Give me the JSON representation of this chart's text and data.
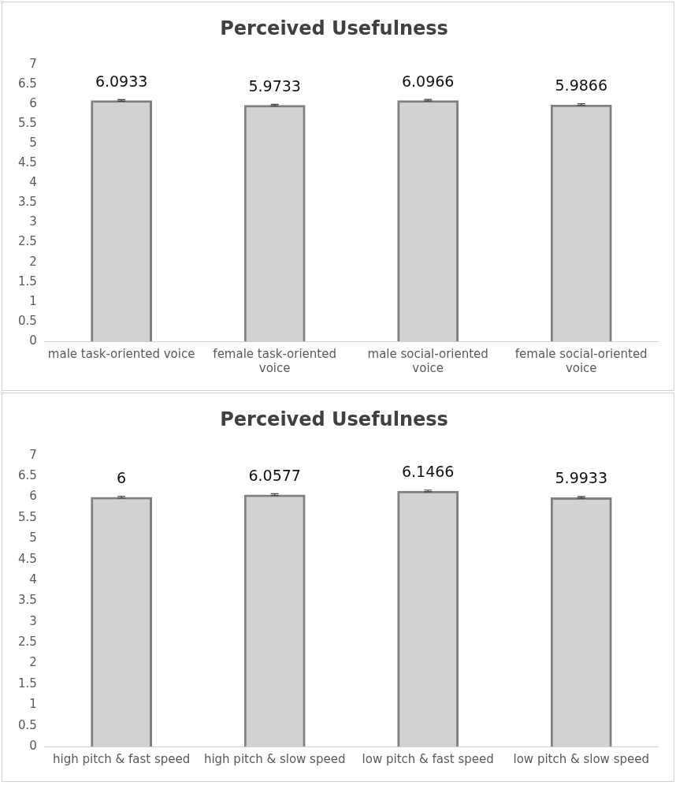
{
  "chart_data": [
    {
      "type": "bar",
      "title": "Perceived Usefulness",
      "categories": [
        "male task-oriented voice",
        "female task-oriented voice",
        "male social-oriented voice",
        "female social-oriented voice"
      ],
      "values": [
        6.0933,
        5.9733,
        6.0966,
        5.9866
      ],
      "errors": [
        0.02,
        0.02,
        0.02,
        0.02
      ],
      "color": "#7f7f7f",
      "data_labels": true,
      "ylim": [
        0,
        7
      ],
      "yticks": [
        0,
        0.5,
        1,
        1.5,
        2,
        2.5,
        3,
        3.5,
        4,
        4.5,
        5,
        5.5,
        6,
        6.5,
        7
      ],
      "grid": false,
      "legend": false
    },
    {
      "type": "bar",
      "title": "Perceived Usefulness",
      "categories": [
        "high pitch & fast speed",
        "high pitch & slow speed",
        "low pitch & fast speed",
        "low pitch & slow speed"
      ],
      "values": [
        6,
        6.0577,
        6.1466,
        5.9933
      ],
      "errors": [
        0.02,
        0.02,
        0.02,
        0.02
      ],
      "color": "#7f7f7f",
      "data_labels": true,
      "ylim": [
        0,
        7
      ],
      "yticks": [
        0,
        0.5,
        1,
        1.5,
        2,
        2.5,
        3,
        3.5,
        4,
        4.5,
        5,
        5.5,
        6,
        6.5,
        7
      ],
      "grid": false,
      "legend": false
    }
  ]
}
